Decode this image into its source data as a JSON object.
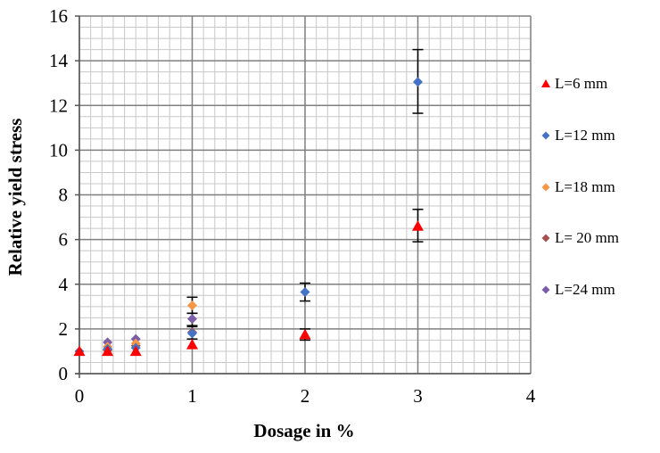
{
  "chart_data": {
    "type": "scatter",
    "title": "",
    "xlabel": "Dosage in %",
    "ylabel": "Relative yield stress",
    "xlim": [
      0,
      4
    ],
    "ylim": [
      0,
      16
    ],
    "x_ticks": [
      "0",
      "1",
      "2",
      "3",
      "4"
    ],
    "y_ticks": [
      "0",
      "2",
      "4",
      "6",
      "8",
      "10",
      "12",
      "14",
      "16"
    ],
    "grid": "on",
    "legend_position": "right",
    "series": [
      {
        "name": "L=6 mm",
        "marker": "triangle",
        "color": "#ff0000",
        "points": [
          {
            "x": 0,
            "y": 1.0
          },
          {
            "x": 0.25,
            "y": 1.0
          },
          {
            "x": 0.5,
            "y": 1.0
          },
          {
            "x": 1,
            "y": 1.3
          },
          {
            "x": 2,
            "y": 1.75,
            "err_low": 1.5,
            "err_high": 2.0
          },
          {
            "x": 3,
            "y": 6.6,
            "err_low": 5.9,
            "err_high": 7.35
          }
        ]
      },
      {
        "name": "L=12 mm",
        "marker": "diamond",
        "color": "#4472c4",
        "points": [
          {
            "x": 0,
            "y": 1.0
          },
          {
            "x": 0.25,
            "y": 1.1
          },
          {
            "x": 0.5,
            "y": 1.15
          },
          {
            "x": 1,
            "y": 1.8
          },
          {
            "x": 2,
            "y": 3.65,
            "err_low": 3.25,
            "err_high": 4.05
          },
          {
            "x": 3,
            "y": 13.05,
            "err_low": 11.65,
            "err_high": 14.5
          }
        ]
      },
      {
        "name": "L=18 mm",
        "marker": "diamond",
        "color": "#f79646",
        "points": [
          {
            "x": 0.25,
            "y": 1.2
          },
          {
            "x": 0.5,
            "y": 1.35
          },
          {
            "x": 1,
            "y": 3.05,
            "err_low": 2.7,
            "err_high": 3.42
          }
        ]
      },
      {
        "name": "L= 20 mm",
        "marker": "diamond",
        "color": "#a5514e",
        "points": [
          {
            "x": 0.25,
            "y": 1.05
          },
          {
            "x": 0.5,
            "y": 1.25
          },
          {
            "x": 1,
            "y": 1.85,
            "err_low": 1.55,
            "err_high": 2.1
          }
        ]
      },
      {
        "name": "L=24 mm",
        "marker": "diamond",
        "color": "#7b5ea7",
        "points": [
          {
            "x": 0.25,
            "y": 1.4
          },
          {
            "x": 0.5,
            "y": 1.55
          },
          {
            "x": 1,
            "y": 2.45,
            "err_low": 2.15,
            "err_high": 2.7
          }
        ]
      }
    ]
  }
}
